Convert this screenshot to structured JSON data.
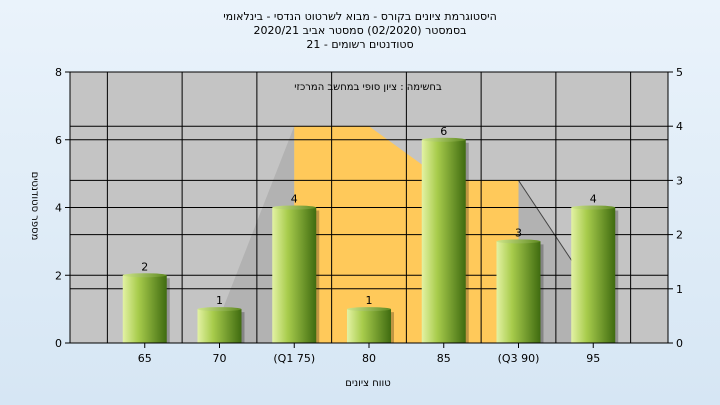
{
  "chart_data": {
    "type": "bar",
    "title": [
      "היסטוגרמת ציונים בקורס - מבוא לשרטוט הנדסי - בינלאומי",
      "בסמסטר  (02/2020)  סמסטר אביב 2020/21",
      "סטודנטים רשומים - 21"
    ],
    "annotation": "בחשימה : ציון סופי במחשב המרכזי",
    "xlabel": "טווח ציונים",
    "ylabel": "מספר סטודנטים",
    "categories": [
      "65",
      "70",
      "(Q1 75)",
      "80",
      "85",
      "(Q3 90)",
      "95"
    ],
    "values": [
      2,
      1,
      4,
      1,
      6,
      3,
      4
    ],
    "ylim": [
      0,
      8
    ],
    "yticks": [
      "0",
      "2",
      "4",
      "6",
      "8"
    ],
    "y2lim": [
      0,
      5
    ],
    "y2ticks": [
      "0",
      "1",
      "2",
      "3",
      "4",
      "5"
    ],
    "box_series": {
      "q1_height": 6.4,
      "median_height": 6.4,
      "q3_height": 4.8
    },
    "grid": true,
    "colors": {
      "plot_bg": "#c4c4c4",
      "box_fill": "#ffc95a",
      "whisker_fill": "#b2b2b2",
      "bar_light": "#e3f2a4",
      "bar_mid": "#a8cc4c",
      "bar_dark": "#3f6b10"
    }
  }
}
